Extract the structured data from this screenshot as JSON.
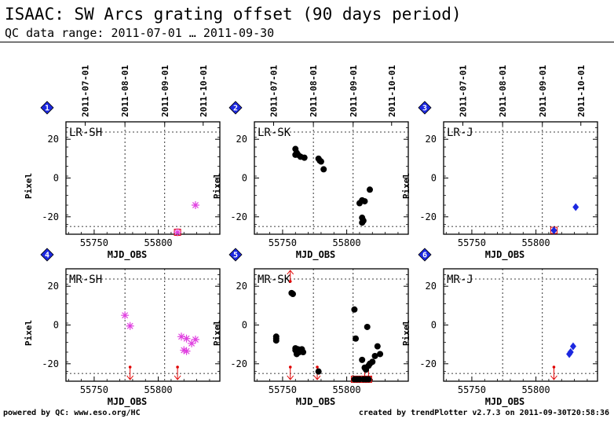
{
  "header": {
    "title": "ISAAC: SW Arcs grating offset (90 days period)",
    "subtitle": "QC data range: 2011-07-01 … 2011-09-30"
  },
  "footer": {
    "left": "powered by QC: www.eso.org/HC",
    "right": "created by trendPlotter v2.7.3 on 2011-09-30T20:58:36"
  },
  "chart_data": [
    {
      "panel": "1",
      "label": "LR-SH",
      "type": "scatter",
      "xlabel": "MJD_OBS",
      "ylabel": "Pixel",
      "xlim": [
        55728,
        55848
      ],
      "ylim": [
        -29,
        29
      ],
      "xticks": [
        55750,
        55800
      ],
      "yticks": [
        -20,
        0,
        20
      ],
      "top_ticks": [
        "2011-07-01",
        "2011-08-01",
        "2011-09-01",
        "2011-10-01"
      ],
      "top_tick_mjd": [
        55743,
        55774,
        55805,
        55835
      ],
      "vlines": [
        55774,
        55805
      ],
      "hline": -25,
      "marker": "star",
      "color": "#e040e0",
      "points": [
        [
          55815,
          -28
        ],
        [
          55829,
          -14
        ]
      ],
      "highlight": [
        [
          55815,
          -28
        ]
      ],
      "outliers_below": []
    },
    {
      "panel": "2",
      "label": "LR-SK",
      "type": "scatter",
      "xlabel": "MJD_OBS",
      "ylabel": "Pixel",
      "xlim": [
        55728,
        55848
      ],
      "ylim": [
        -29,
        29
      ],
      "xticks": [
        55750,
        55800
      ],
      "yticks": [
        -20,
        0,
        20
      ],
      "top_ticks": [
        "2011-07-01",
        "2011-08-01",
        "2011-09-01",
        "2011-10-01"
      ],
      "top_tick_mjd": [
        55743,
        55774,
        55805,
        55835
      ],
      "vlines": [
        55774,
        55805
      ],
      "hline": -25,
      "marker": "circle",
      "color": "#000000",
      "points": [
        [
          55760,
          15
        ],
        [
          55761,
          13
        ],
        [
          55760,
          12
        ],
        [
          55762,
          12
        ],
        [
          55764,
          11
        ],
        [
          55767,
          10.5
        ],
        [
          55778,
          10
        ],
        [
          55779,
          9
        ],
        [
          55780,
          8.5
        ],
        [
          55782,
          4.5
        ],
        [
          55810,
          -13
        ],
        [
          55812,
          -11.5
        ],
        [
          55814,
          -12
        ],
        [
          55812,
          -20.5
        ],
        [
          55812,
          -23
        ],
        [
          55813,
          -22
        ],
        [
          55818,
          -6
        ]
      ],
      "highlight": [],
      "outliers_below": []
    },
    {
      "panel": "3",
      "label": "LR-J",
      "type": "scatter",
      "xlabel": "MJD_OBS",
      "ylabel": "Pixel",
      "xlim": [
        55728,
        55848
      ],
      "ylim": [
        -29,
        29
      ],
      "xticks": [
        55750,
        55800
      ],
      "yticks": [
        -20,
        0,
        20
      ],
      "top_ticks": [
        "2011-07-01",
        "2011-08-01",
        "2011-09-01",
        "2011-10-01"
      ],
      "top_tick_mjd": [
        55743,
        55774,
        55805,
        55835
      ],
      "vlines": [
        55774,
        55805
      ],
      "hline": -25,
      "marker": "diamond",
      "color": "#1c28e0",
      "points": [
        [
          55814,
          -27
        ],
        [
          55831,
          -15
        ]
      ],
      "highlight": [
        [
          55814,
          -27
        ]
      ],
      "outliers_below": []
    },
    {
      "panel": "4",
      "label": "MR-SH",
      "type": "scatter",
      "xlabel": "MJD_OBS",
      "ylabel": "Pixel",
      "xlim": [
        55728,
        55848
      ],
      "ylim": [
        -29,
        29
      ],
      "xticks": [
        55750,
        55800
      ],
      "yticks": [
        -20,
        0,
        20
      ],
      "top_ticks": [],
      "top_tick_mjd": [],
      "vlines": [
        55774,
        55805
      ],
      "hline": -25,
      "marker": "star",
      "color": "#e040e0",
      "points": [
        [
          55774,
          5
        ],
        [
          55778,
          -0.5
        ],
        [
          55818,
          -6
        ],
        [
          55822,
          -7
        ],
        [
          55820,
          -13
        ],
        [
          55822,
          -13.5
        ],
        [
          55826,
          -9.5
        ],
        [
          55829,
          -7.5
        ]
      ],
      "highlight": [],
      "outliers_below": [
        55778,
        55815
      ]
    },
    {
      "panel": "5",
      "label": "MR-SK",
      "type": "scatter",
      "xlabel": "MJD_OBS",
      "ylabel": "Pixel",
      "xlim": [
        55728,
        55848
      ],
      "ylim": [
        -29,
        29
      ],
      "xticks": [
        55750,
        55800
      ],
      "yticks": [
        -20,
        0,
        20
      ],
      "top_ticks": [],
      "top_tick_mjd": [],
      "vlines": [
        55774,
        55805
      ],
      "hline": -25,
      "marker": "circle",
      "color": "#000000",
      "points": [
        [
          55745,
          -6
        ],
        [
          55745,
          -7
        ],
        [
          55745,
          -8
        ],
        [
          55757,
          16.5
        ],
        [
          55758,
          16
        ],
        [
          55760,
          -12
        ],
        [
          55760,
          -13
        ],
        [
          55761,
          -14
        ],
        [
          55761,
          -15
        ],
        [
          55762,
          -12.5
        ],
        [
          55763,
          -14
        ],
        [
          55764,
          -13
        ],
        [
          55765,
          -12.5
        ],
        [
          55766,
          -14
        ],
        [
          55778,
          -24
        ],
        [
          55806,
          8
        ],
        [
          55807,
          -7
        ],
        [
          55812,
          -18
        ],
        [
          55814,
          -22
        ],
        [
          55815,
          -23
        ],
        [
          55816,
          -1
        ],
        [
          55817,
          -21
        ],
        [
          55818,
          -20
        ],
        [
          55820,
          -19
        ],
        [
          55822,
          -16
        ],
        [
          55824,
          -11
        ],
        [
          55826,
          -15
        ],
        [
          55806,
          -28
        ],
        [
          55808,
          -28
        ],
        [
          55810,
          -28
        ],
        [
          55813,
          -28
        ],
        [
          55815,
          -28
        ],
        [
          55817,
          -28
        ]
      ],
      "highlight": [
        [
          55806,
          -28
        ],
        [
          55808,
          -28
        ],
        [
          55810,
          -28
        ],
        [
          55813,
          -28
        ],
        [
          55815,
          -28
        ],
        [
          55817,
          -28
        ]
      ],
      "outliers_below": [
        55756,
        55777,
        55814,
        55817
      ],
      "outliers_above": [
        55756
      ]
    },
    {
      "panel": "6",
      "label": "MR-J",
      "type": "scatter",
      "xlabel": "MJD_OBS",
      "ylabel": "Pixel",
      "xlim": [
        55728,
        55848
      ],
      "ylim": [
        -29,
        29
      ],
      "xticks": [
        55750,
        55800
      ],
      "yticks": [
        -20,
        0,
        20
      ],
      "top_ticks": [],
      "top_tick_mjd": [],
      "vlines": [
        55774,
        55805
      ],
      "hline": -25,
      "marker": "diamond",
      "color": "#1c28e0",
      "points": [
        [
          55829,
          -11
        ],
        [
          55827,
          -14
        ],
        [
          55826,
          -15
        ]
      ],
      "highlight": [],
      "outliers_below": [
        55814
      ]
    }
  ]
}
